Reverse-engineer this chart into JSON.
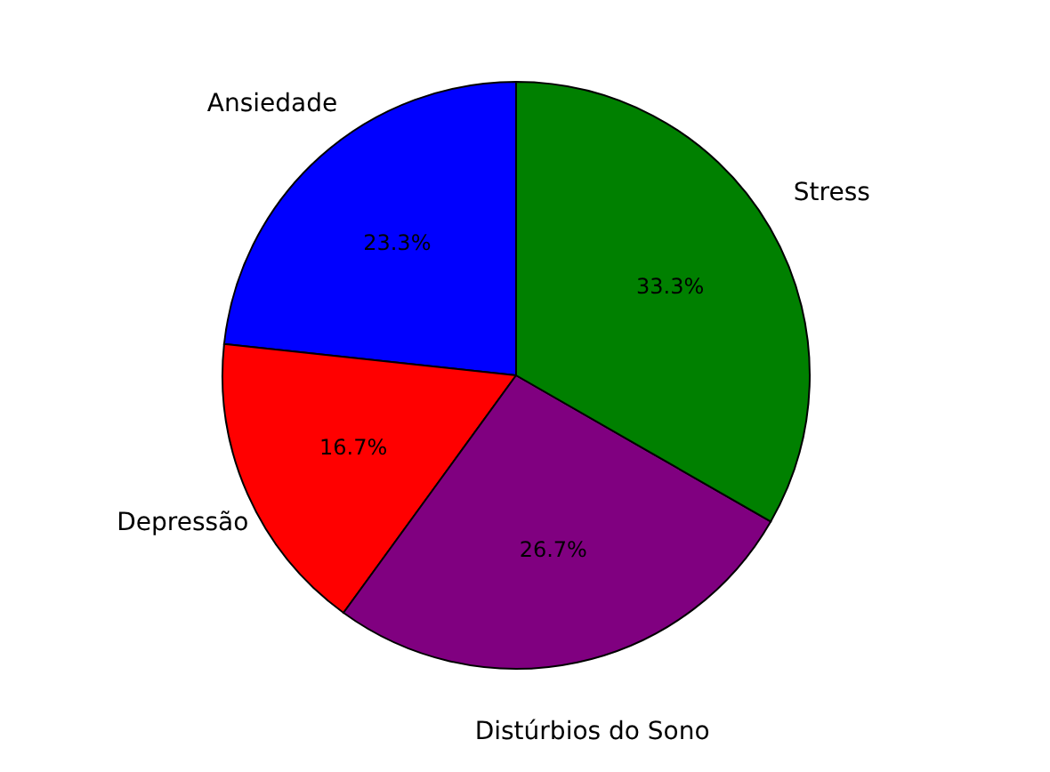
{
  "chart_data": {
    "type": "pie",
    "categories": [
      "Ansiedade",
      "Depressão",
      "Distúrbios do Sono",
      "Stress"
    ],
    "values": [
      23.3,
      16.7,
      26.7,
      33.3
    ],
    "colors": [
      "#0000ff",
      "#ff0000",
      "#800080",
      "#008000"
    ],
    "value_labels": [
      "23.3%",
      "16.7%",
      "26.7%",
      "33.3%"
    ]
  }
}
